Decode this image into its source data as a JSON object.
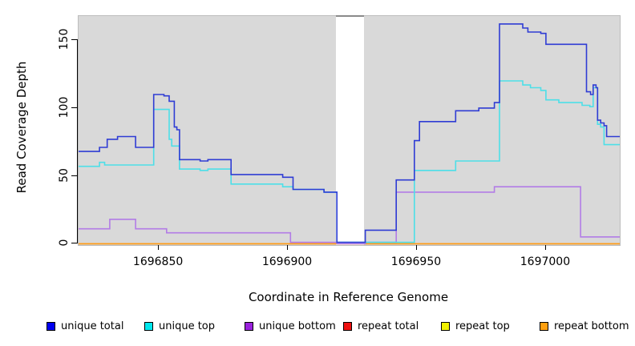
{
  "figure": {
    "bg": "#ffffff",
    "panel_bg": "#d9d9d9",
    "panel_border": "#bdbdbd",
    "na_gap_fill": "#ffffff",
    "na_gap_cap_color": "#8a8a8a"
  },
  "chart_data": {
    "type": "line",
    "subtype": "step-coverage-plot",
    "title": "",
    "xlabel": "Coordinate in Reference Genome",
    "ylabel": "Read Coverage Depth",
    "x_ticks": [
      1696850,
      1696900,
      1696950,
      1697000
    ],
    "x_tick_labels": [
      "1696850",
      "1696900",
      "1696950",
      "1697000"
    ],
    "y_ticks": [
      0,
      50,
      100,
      150
    ],
    "y_tick_labels": [
      "0",
      "50",
      "100",
      "150"
    ],
    "xlim": [
      1696818.9,
      1697028.6
    ],
    "ylim": [
      0,
      168
    ],
    "grid": false,
    "legend_position": "bottom",
    "na_gap_x": [
      1696918.6,
      1696929.6
    ],
    "series": [
      {
        "name": "repeat total",
        "line_color": "#cc2020",
        "legend_color": "#ee1111",
        "steps": [
          [
            1696818.9,
            0
          ],
          [
            1697028.6,
            0
          ]
        ]
      },
      {
        "name": "repeat top",
        "line_color": "#e8e820",
        "legend_color": "#f2f200",
        "steps": [
          [
            1696818.9,
            0
          ],
          [
            1697028.6,
            0
          ]
        ]
      },
      {
        "name": "repeat bottom",
        "line_color": "#ff9d1a",
        "legend_color": "#ffa010",
        "steps": [
          [
            1696818.9,
            0
          ],
          [
            1697028.6,
            0
          ]
        ]
      },
      {
        "name": "unique bottom",
        "line_color": "#b27ce6",
        "legend_color": "#9a22dd",
        "steps": [
          [
            1696818.9,
            11
          ],
          [
            1696831,
            18
          ],
          [
            1696841,
            11
          ],
          [
            1696853,
            8
          ],
          [
            1696901,
            1
          ],
          [
            1696919,
            0
          ],
          [
            1696930,
            1
          ],
          [
            1696942,
            38
          ],
          [
            1696980,
            42
          ],
          [
            1697013.4,
            5
          ],
          [
            1697028.6,
            5
          ]
        ]
      },
      {
        "name": "unique top",
        "line_color": "#4ddfe8",
        "legend_color": "#00e8ee",
        "steps": [
          [
            1696818.9,
            57
          ],
          [
            1696827,
            60
          ],
          [
            1696829,
            58
          ],
          [
            1696848,
            99
          ],
          [
            1696854,
            77
          ],
          [
            1696855,
            72
          ],
          [
            1696858,
            55
          ],
          [
            1696866,
            54
          ],
          [
            1696869,
            55
          ],
          [
            1696878,
            44
          ],
          [
            1696898,
            42
          ],
          [
            1696902,
            40
          ],
          [
            1696914,
            38
          ],
          [
            1696919,
            1
          ],
          [
            1696930,
            1
          ],
          [
            1696949,
            54
          ],
          [
            1696965,
            61
          ],
          [
            1696982,
            120
          ],
          [
            1696991,
            117
          ],
          [
            1696994,
            115
          ],
          [
            1696998,
            113
          ],
          [
            1697000,
            106
          ],
          [
            1697005,
            104
          ],
          [
            1697014,
            102
          ],
          [
            1697017,
            101
          ],
          [
            1697018.3,
            115
          ],
          [
            1697020,
            88
          ],
          [
            1697021.2,
            86
          ],
          [
            1697022.5,
            73
          ],
          [
            1697028.6,
            73
          ]
        ]
      },
      {
        "name": "unique total",
        "line_color": "#2f3cd4",
        "legend_color": "#0000f0",
        "steps": [
          [
            1696818.9,
            68
          ],
          [
            1696827,
            71
          ],
          [
            1696830,
            77
          ],
          [
            1696834,
            79
          ],
          [
            1696841,
            71
          ],
          [
            1696848,
            110
          ],
          [
            1696852,
            109
          ],
          [
            1696854,
            105
          ],
          [
            1696856,
            86
          ],
          [
            1696857,
            84
          ],
          [
            1696858,
            62
          ],
          [
            1696866,
            61
          ],
          [
            1696869,
            62
          ],
          [
            1696878,
            51
          ],
          [
            1696898,
            49
          ],
          [
            1696902,
            40
          ],
          [
            1696914,
            38
          ],
          [
            1696919,
            1
          ],
          [
            1696930,
            10
          ],
          [
            1696942,
            47
          ],
          [
            1696949,
            76
          ],
          [
            1696951,
            90
          ],
          [
            1696965,
            98
          ],
          [
            1696974,
            100
          ],
          [
            1696980,
            104
          ],
          [
            1696982,
            162
          ],
          [
            1696991,
            159
          ],
          [
            1696993,
            156
          ],
          [
            1696998,
            155
          ],
          [
            1697000,
            147
          ],
          [
            1697015.7,
            112
          ],
          [
            1697017.3,
            110
          ],
          [
            1697018.3,
            117
          ],
          [
            1697019.4,
            115
          ],
          [
            1697020,
            91
          ],
          [
            1697021.2,
            89
          ],
          [
            1697022.5,
            87
          ],
          [
            1697023.5,
            79
          ],
          [
            1697028.6,
            79
          ]
        ]
      }
    ]
  },
  "legend": {
    "items": [
      {
        "label": "unique total",
        "color": "#0000f0"
      },
      {
        "label": "unique top",
        "color": "#00e8ee"
      },
      {
        "label": "unique bottom",
        "color": "#9a22dd"
      },
      {
        "label": "repeat total",
        "color": "#ee1111"
      },
      {
        "label": "repeat top",
        "color": "#f2f200"
      },
      {
        "label": "repeat bottom",
        "color": "#ffa010"
      }
    ]
  }
}
